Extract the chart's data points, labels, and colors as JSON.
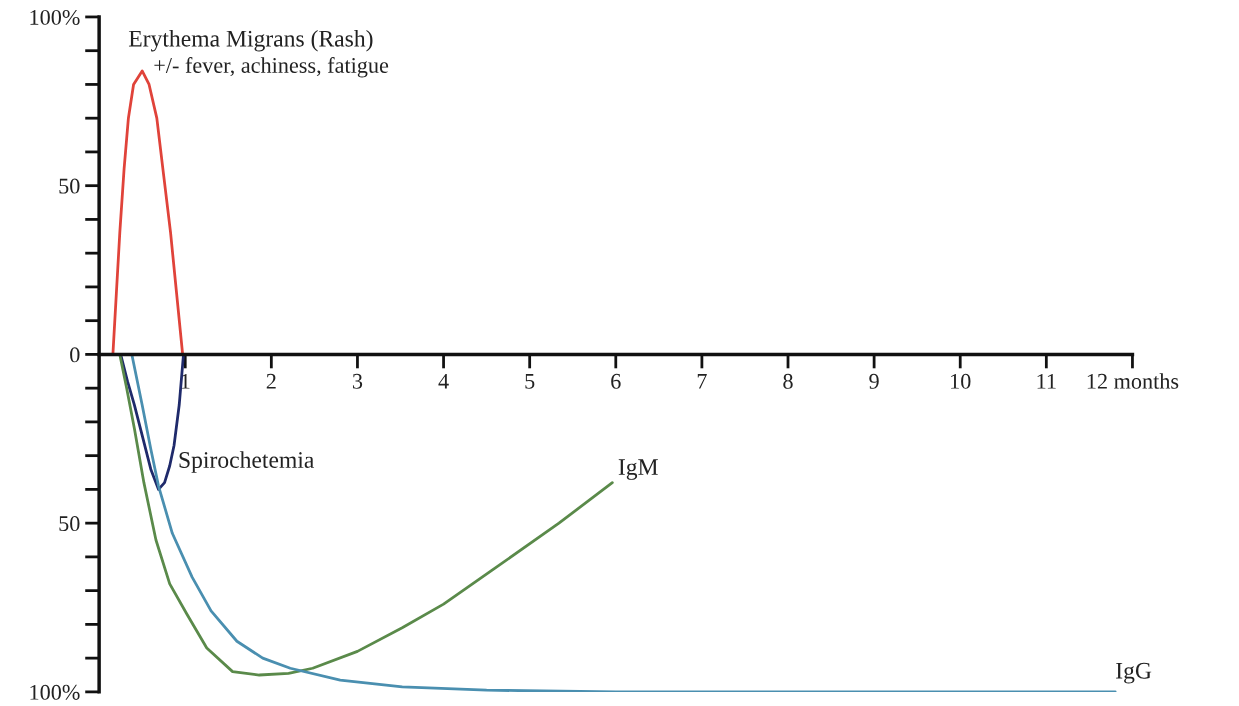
{
  "chart_data": {
    "type": "line",
    "xlim": [
      0,
      12
    ],
    "xticks": [
      1,
      2,
      3,
      4,
      5,
      6,
      7,
      8,
      9,
      10,
      11,
      {
        "value": 12,
        "label": "12 months"
      }
    ],
    "ylim": [
      -100,
      100
    ],
    "yticks": [
      {
        "value": 100,
        "label": "100%"
      },
      {
        "value": 90,
        "label": null
      },
      {
        "value": 80,
        "label": null
      },
      {
        "value": 70,
        "label": null
      },
      {
        "value": 60,
        "label": null
      },
      50,
      {
        "value": 40,
        "label": null
      },
      {
        "value": 30,
        "label": null
      },
      {
        "value": 20,
        "label": null
      },
      {
        "value": 10,
        "label": null
      },
      0,
      {
        "value": -10,
        "label": null
      },
      {
        "value": -20,
        "label": null
      },
      {
        "value": -30,
        "label": null
      },
      {
        "value": -40,
        "label": null
      },
      {
        "value": -50,
        "label": "50"
      },
      {
        "value": -60,
        "label": null
      },
      {
        "value": -70,
        "label": null
      },
      {
        "value": -80,
        "label": null
      },
      {
        "value": -90,
        "label": null
      },
      {
        "value": -100,
        "label": "100%"
      }
    ],
    "grid": false,
    "legend": false,
    "series": [
      {
        "name": "Erythema Migrans (Rash)",
        "color": "#e0433a",
        "x": [
          0.16,
          0.2,
          0.24,
          0.29,
          0.34,
          0.4,
          0.5,
          0.58,
          0.67,
          0.75,
          0.83,
          0.9,
          0.97
        ],
        "values": [
          0,
          18,
          36,
          55,
          70,
          80,
          84,
          80,
          70,
          53,
          36,
          18,
          0
        ]
      },
      {
        "name": "Spirochetemia",
        "color": "#1f2a6b",
        "x": [
          0.25,
          0.33,
          0.41,
          0.5,
          0.6,
          0.69,
          0.76,
          0.82,
          0.87,
          0.93,
          0.98
        ],
        "values": [
          0,
          -8,
          -15,
          -24,
          -34,
          -40,
          -38,
          -33,
          -27,
          -15,
          0
        ]
      },
      {
        "name": "IgM",
        "color": "#5a8a4a",
        "x": [
          0.24,
          0.32,
          0.41,
          0.52,
          0.66,
          0.82,
          1.02,
          1.25,
          1.55,
          1.86,
          2.2,
          2.48,
          3.0,
          3.52,
          4.0,
          4.56,
          5.34,
          5.96
        ],
        "values": [
          0,
          -10,
          -22,
          -38,
          -55,
          -68,
          -77,
          -87,
          -94,
          -95,
          -94.5,
          -93,
          -88,
          -81,
          -74,
          -64,
          -50,
          -38
        ]
      },
      {
        "name": "IgG",
        "color": "#4a8fb0",
        "x": [
          0.38,
          0.5,
          0.6,
          0.69,
          0.85,
          1.08,
          1.3,
          1.6,
          1.9,
          2.22,
          2.8,
          3.52,
          4.5,
          6,
          11.8
        ],
        "values": [
          0,
          -15,
          -28,
          -39,
          -53,
          -66,
          -76,
          -85,
          -90,
          -93,
          -96.5,
          -98.5,
          -99.5,
          -100,
          -100
        ]
      }
    ],
    "annotations": [
      "+/- fever, achiness, fatigue"
    ]
  }
}
